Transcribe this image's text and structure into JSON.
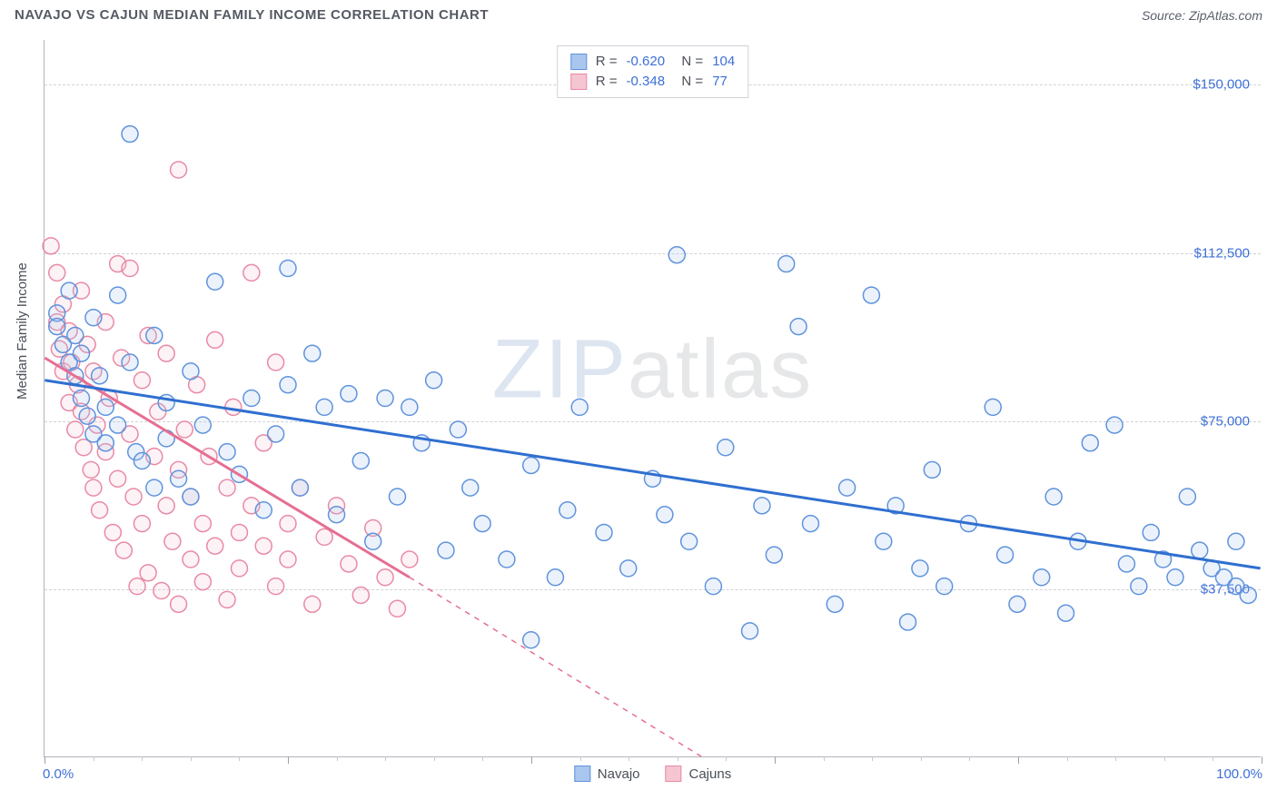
{
  "header": {
    "title": "NAVAJO VS CAJUN MEDIAN FAMILY INCOME CORRELATION CHART",
    "source": "Source: ZipAtlas.com"
  },
  "watermark": {
    "prefix": "ZIP",
    "suffix": "atlas"
  },
  "chart": {
    "type": "scatter",
    "background_color": "#ffffff",
    "grid_color": "#cfd2d8",
    "axis_color": "#b0b4bc",
    "tick_label_color": "#3d6fd6",
    "axis_label_color": "#4a4f58",
    "ylabel": "Median Family Income",
    "label_fontsize": 15,
    "xlim": [
      0,
      100
    ],
    "ylim": [
      0,
      160000
    ],
    "x_ticks_major": [
      0,
      20,
      40,
      60,
      80,
      100
    ],
    "x_ticks_minor": [
      4,
      8,
      12,
      16,
      24,
      28,
      32,
      36,
      44,
      48,
      52,
      56,
      64,
      68,
      72,
      76,
      84,
      88,
      92,
      96
    ],
    "x_tick_labels": {
      "0": "0.0%",
      "100": "100.0%"
    },
    "y_gridlines": [
      37500,
      75000,
      112500,
      150000
    ],
    "y_tick_labels": {
      "37500": "$37,500",
      "75000": "$75,000",
      "112500": "$112,500",
      "150000": "$150,000"
    },
    "marker_radius": 9,
    "marker_stroke_width": 1.5,
    "marker_fill_opacity": 0.22,
    "series": {
      "navajo": {
        "label": "Navajo",
        "marker_fill": "#a9c6ef",
        "marker_stroke": "#5f93dd",
        "line_color": "#2f6fd0",
        "line_width": 3,
        "R": "-0.620",
        "N": "104",
        "trend": {
          "x1": 0,
          "y1": 84000,
          "x2": 100,
          "y2": 42000
        },
        "points": [
          [
            1,
            99000
          ],
          [
            1,
            96000
          ],
          [
            1.5,
            92000
          ],
          [
            2,
            104000
          ],
          [
            2,
            88000
          ],
          [
            2.5,
            94000
          ],
          [
            2.5,
            85000
          ],
          [
            3,
            90000
          ],
          [
            3,
            80000
          ],
          [
            3.5,
            76000
          ],
          [
            4,
            98000
          ],
          [
            4,
            72000
          ],
          [
            4.5,
            85000
          ],
          [
            5,
            78000
          ],
          [
            5,
            70000
          ],
          [
            6,
            103000
          ],
          [
            6,
            74000
          ],
          [
            7,
            139000
          ],
          [
            7,
            88000
          ],
          [
            7.5,
            68000
          ],
          [
            8,
            66000
          ],
          [
            9,
            94000
          ],
          [
            9,
            60000
          ],
          [
            10,
            79000
          ],
          [
            10,
            71000
          ],
          [
            11,
            62000
          ],
          [
            12,
            58000
          ],
          [
            12,
            86000
          ],
          [
            13,
            74000
          ],
          [
            14,
            106000
          ],
          [
            15,
            68000
          ],
          [
            16,
            63000
          ],
          [
            17,
            80000
          ],
          [
            18,
            55000
          ],
          [
            19,
            72000
          ],
          [
            20,
            109000
          ],
          [
            20,
            83000
          ],
          [
            21,
            60000
          ],
          [
            22,
            90000
          ],
          [
            23,
            78000
          ],
          [
            24,
            54000
          ],
          [
            25,
            81000
          ],
          [
            26,
            66000
          ],
          [
            27,
            48000
          ],
          [
            28,
            80000
          ],
          [
            29,
            58000
          ],
          [
            30,
            78000
          ],
          [
            31,
            70000
          ],
          [
            32,
            84000
          ],
          [
            33,
            46000
          ],
          [
            34,
            73000
          ],
          [
            35,
            60000
          ],
          [
            36,
            52000
          ],
          [
            38,
            44000
          ],
          [
            40,
            65000
          ],
          [
            40,
            26000
          ],
          [
            42,
            40000
          ],
          [
            43,
            55000
          ],
          [
            44,
            78000
          ],
          [
            46,
            50000
          ],
          [
            48,
            42000
          ],
          [
            50,
            62000
          ],
          [
            51,
            54000
          ],
          [
            52,
            112000
          ],
          [
            53,
            48000
          ],
          [
            55,
            38000
          ],
          [
            56,
            69000
          ],
          [
            58,
            28000
          ],
          [
            59,
            56000
          ],
          [
            60,
            45000
          ],
          [
            61,
            110000
          ],
          [
            62,
            96000
          ],
          [
            63,
            52000
          ],
          [
            65,
            34000
          ],
          [
            66,
            60000
          ],
          [
            68,
            103000
          ],
          [
            69,
            48000
          ],
          [
            70,
            56000
          ],
          [
            71,
            30000
          ],
          [
            72,
            42000
          ],
          [
            73,
            64000
          ],
          [
            74,
            38000
          ],
          [
            76,
            52000
          ],
          [
            78,
            78000
          ],
          [
            79,
            45000
          ],
          [
            80,
            34000
          ],
          [
            82,
            40000
          ],
          [
            83,
            58000
          ],
          [
            84,
            32000
          ],
          [
            85,
            48000
          ],
          [
            86,
            70000
          ],
          [
            88,
            74000
          ],
          [
            89,
            43000
          ],
          [
            90,
            38000
          ],
          [
            91,
            50000
          ],
          [
            92,
            44000
          ],
          [
            93,
            40000
          ],
          [
            94,
            58000
          ],
          [
            95,
            46000
          ],
          [
            96,
            42000
          ],
          [
            97,
            40000
          ],
          [
            98,
            38000
          ],
          [
            98,
            48000
          ],
          [
            99,
            36000
          ]
        ]
      },
      "cajuns": {
        "label": "Cajuns",
        "marker_fill": "#f6c5d2",
        "marker_stroke": "#e88aa5",
        "line_color": "#e56f92",
        "line_width": 3,
        "R": "-0.348",
        "N": "77",
        "trend": {
          "x1": 0,
          "y1": 89000,
          "x2": 30,
          "y2": 40000
        },
        "trend_dash": {
          "x1": 30,
          "y1": 40000,
          "x2": 54,
          "y2": 0
        },
        "points": [
          [
            0.5,
            114000
          ],
          [
            1,
            108000
          ],
          [
            1,
            97000
          ],
          [
            1.2,
            91000
          ],
          [
            1.5,
            101000
          ],
          [
            1.5,
            86000
          ],
          [
            2,
            95000
          ],
          [
            2,
            79000
          ],
          [
            2.2,
            88000
          ],
          [
            2.5,
            73000
          ],
          [
            2.7,
            83000
          ],
          [
            3,
            104000
          ],
          [
            3,
            77000
          ],
          [
            3.2,
            69000
          ],
          [
            3.5,
            92000
          ],
          [
            3.8,
            64000
          ],
          [
            4,
            86000
          ],
          [
            4,
            60000
          ],
          [
            4.3,
            74000
          ],
          [
            4.5,
            55000
          ],
          [
            5,
            97000
          ],
          [
            5,
            68000
          ],
          [
            5.3,
            80000
          ],
          [
            5.6,
            50000
          ],
          [
            6,
            110000
          ],
          [
            6,
            62000
          ],
          [
            6.3,
            89000
          ],
          [
            6.5,
            46000
          ],
          [
            7,
            109000
          ],
          [
            7,
            72000
          ],
          [
            7.3,
            58000
          ],
          [
            7.6,
            38000
          ],
          [
            8,
            84000
          ],
          [
            8,
            52000
          ],
          [
            8.5,
            94000
          ],
          [
            8.5,
            41000
          ],
          [
            9,
            67000
          ],
          [
            9.3,
            77000
          ],
          [
            9.6,
            37000
          ],
          [
            10,
            56000
          ],
          [
            10,
            90000
          ],
          [
            10.5,
            48000
          ],
          [
            11,
            131000
          ],
          [
            11,
            64000
          ],
          [
            11,
            34000
          ],
          [
            11.5,
            73000
          ],
          [
            12,
            58000
          ],
          [
            12,
            44000
          ],
          [
            12.5,
            83000
          ],
          [
            13,
            52000
          ],
          [
            13,
            39000
          ],
          [
            13.5,
            67000
          ],
          [
            14,
            47000
          ],
          [
            14,
            93000
          ],
          [
            15,
            60000
          ],
          [
            15,
            35000
          ],
          [
            15.5,
            78000
          ],
          [
            16,
            50000
          ],
          [
            16,
            42000
          ],
          [
            17,
            108000
          ],
          [
            17,
            56000
          ],
          [
            18,
            47000
          ],
          [
            18,
            70000
          ],
          [
            19,
            38000
          ],
          [
            19,
            88000
          ],
          [
            20,
            52000
          ],
          [
            20,
            44000
          ],
          [
            21,
            60000
          ],
          [
            22,
            34000
          ],
          [
            23,
            49000
          ],
          [
            24,
            56000
          ],
          [
            25,
            43000
          ],
          [
            26,
            36000
          ],
          [
            27,
            51000
          ],
          [
            28,
            40000
          ],
          [
            29,
            33000
          ],
          [
            30,
            44000
          ]
        ]
      }
    },
    "legend_top": {
      "border_color": "#cfd2d8",
      "label_color": "#4a4f58",
      "value_color": "#3d6fd6"
    },
    "legend_bottom": {
      "items": [
        {
          "key": "navajo",
          "swatch_fill": "#a9c6ef",
          "swatch_stroke": "#5f93dd"
        },
        {
          "key": "cajuns",
          "swatch_fill": "#f6c5d2",
          "swatch_stroke": "#e88aa5"
        }
      ]
    }
  }
}
